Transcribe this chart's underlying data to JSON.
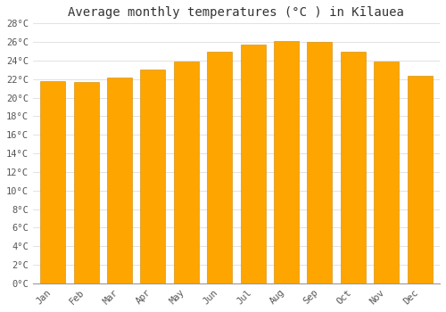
{
  "title": "Average monthly temperatures (°C ) in Kīlauea",
  "months": [
    "Jan",
    "Feb",
    "Mar",
    "Apr",
    "May",
    "Jun",
    "Jul",
    "Aug",
    "Sep",
    "Oct",
    "Nov",
    "Dec"
  ],
  "values": [
    21.8,
    21.7,
    22.2,
    23.0,
    23.9,
    25.0,
    25.7,
    26.1,
    26.0,
    25.0,
    23.9,
    22.4
  ],
  "bar_color_top": "#FFA500",
  "bar_color_bottom": "#FFD060",
  "bar_edge_color": "#CC8800",
  "background_color": "#FFFFFF",
  "plot_bg_color": "#FFFFFF",
  "ylim": [
    0,
    28
  ],
  "ytick_step": 2,
  "title_fontsize": 10,
  "tick_fontsize": 7.5,
  "grid_color": "#DDDDDD",
  "bar_width": 0.75
}
